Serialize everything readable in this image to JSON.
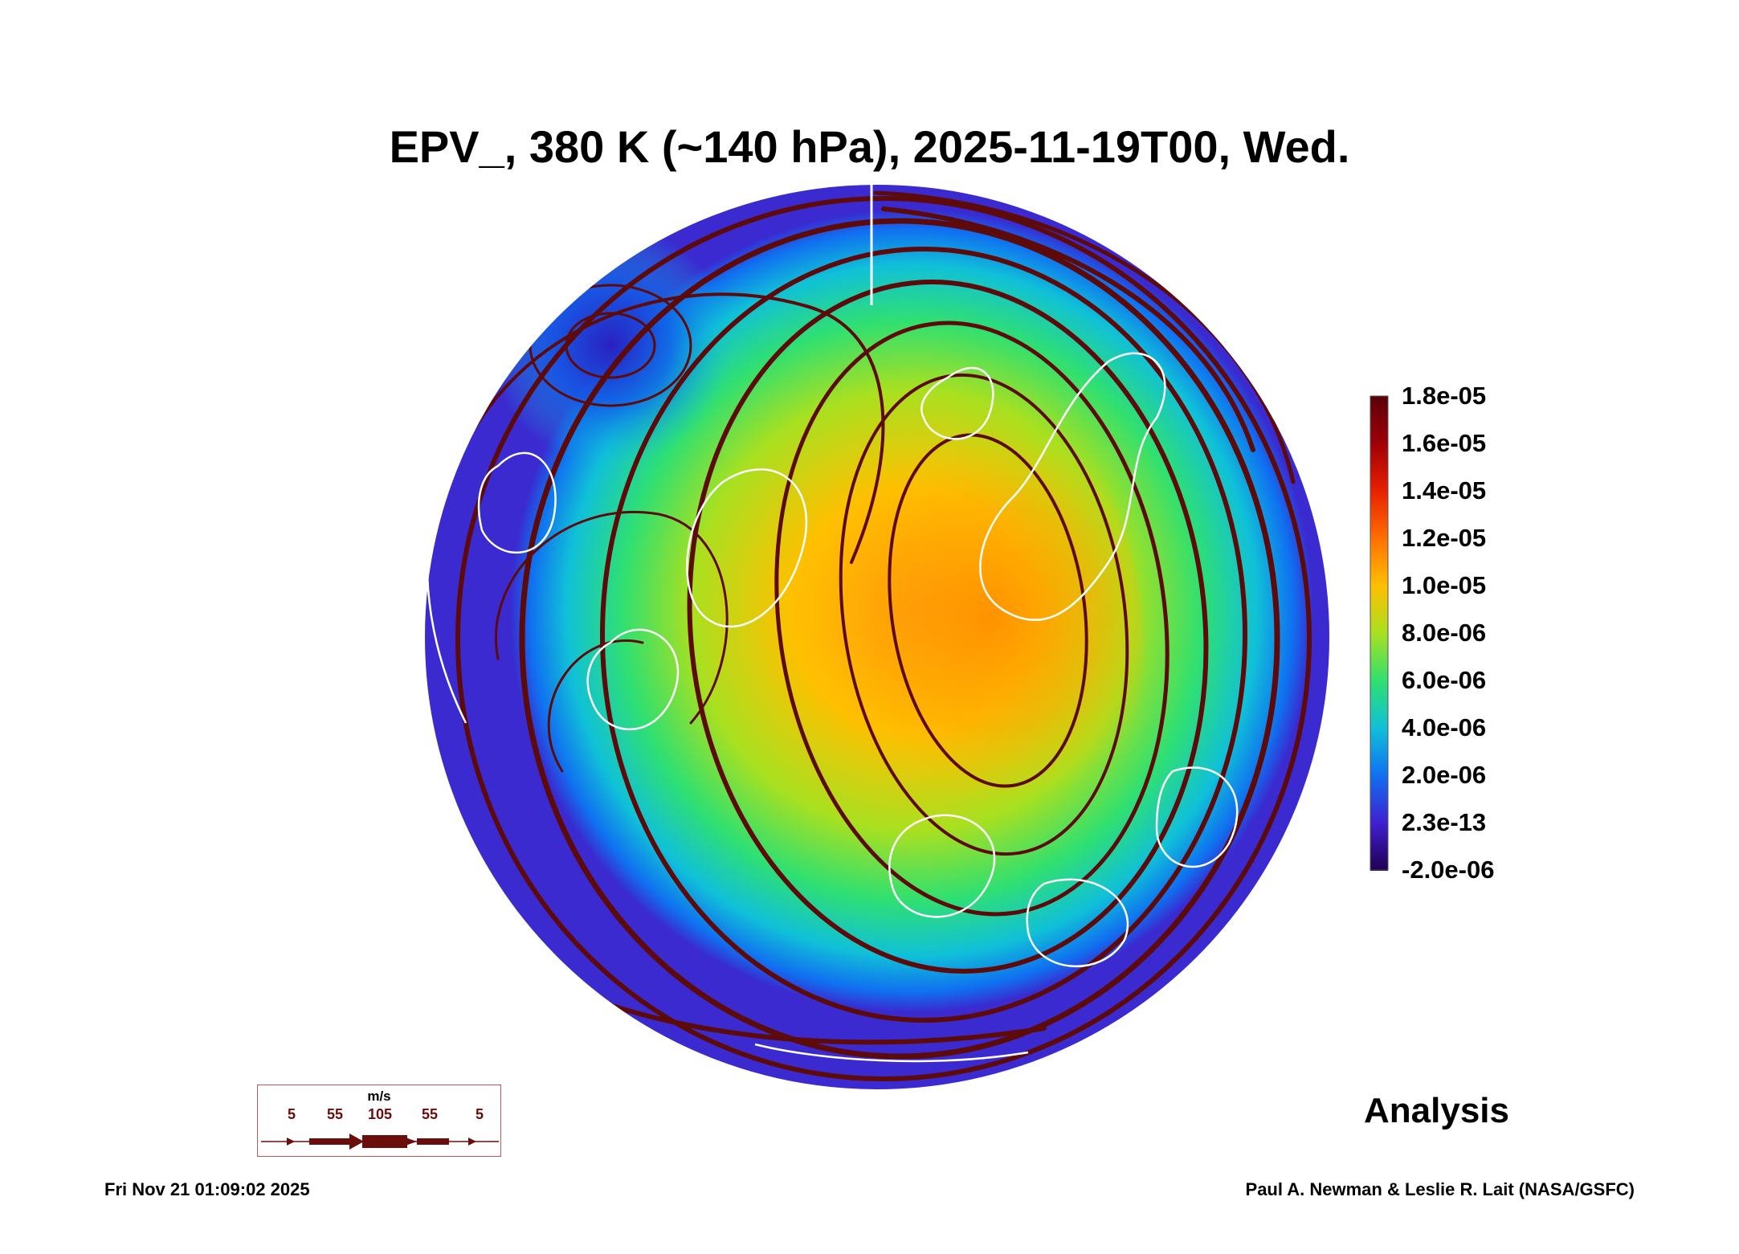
{
  "title": "EPV_, 380 K (~140 hPa), 2025-11-19T00, Wed.",
  "colorbar": {
    "labels": [
      "1.8e-05",
      "1.6e-05",
      "1.4e-05",
      "1.2e-05",
      "1.0e-05",
      "8.0e-06",
      "6.0e-06",
      "4.0e-06",
      "2.0e-06",
      "2.3e-13",
      "-2.0e-06"
    ],
    "colors": [
      "#5a0008",
      "#a00008",
      "#e82000",
      "#ff7000",
      "#ffc000",
      "#a8e020",
      "#30e070",
      "#10c0d8",
      "#1070f0",
      "#4020d0",
      "#200050"
    ]
  },
  "wind_legend": {
    "unit": "m/s",
    "ticks": [
      "5",
      "55",
      "105",
      "55",
      "5"
    ],
    "color": "#6b0d0d"
  },
  "label": "Analysis",
  "timestamp": "Fri Nov 21 01:09:02 2025",
  "credit": "Paul A. Newman & Leslie R. Lait (NASA/GSFC)",
  "colors": {
    "streamline": "#5c0a0a",
    "coastline": "#ffffff"
  }
}
